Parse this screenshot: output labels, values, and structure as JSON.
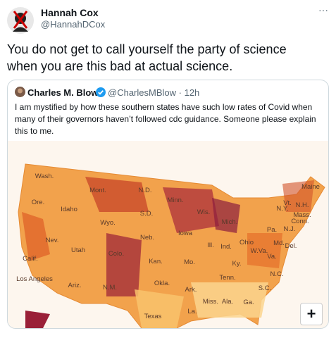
{
  "tweet": {
    "author_name": "Hannah Cox",
    "author_handle": "@HannahDCox",
    "more": "···",
    "text": "You do not get to call yourself the party of science when you are this bad at actual science."
  },
  "quoted_tweet": {
    "author_name": "Charles M. Blow",
    "author_handle": "@CharlesMBlow",
    "separator": "·",
    "time": "12h",
    "text": "I am mystified by how these southern states have such low rates of Covid when many of their governors haven’t followed cdc guidance. Someone please explain this to me."
  },
  "map": {
    "labels": [
      "Wash.",
      "Mont.",
      "N.D.",
      "Minn.",
      "Maine",
      "Ore.",
      "Idaho",
      "S.D.",
      "Wis.",
      "Vt.",
      "N.H.",
      "N.Y.",
      "Mass.",
      "Conn.",
      "Wyo.",
      "Mich.",
      "Pa.",
      "N.J.",
      "Nev.",
      "Neb.",
      "Iowa",
      "Utah",
      "Ill.",
      "Ind.",
      "Ohio",
      "Md.",
      "Del.",
      "Calif.",
      "Colo.",
      "W.Va.",
      "Va.",
      "Kan.",
      "Mo.",
      "Ky.",
      "N.C.",
      "Los Angeles",
      "Tenn.",
      "Ariz.",
      "N.M.",
      "Okla.",
      "Ark.",
      "S.C.",
      "Miss.",
      "Ala.",
      "Ga.",
      "La.",
      "Texas"
    ],
    "zoom_button": "+"
  }
}
